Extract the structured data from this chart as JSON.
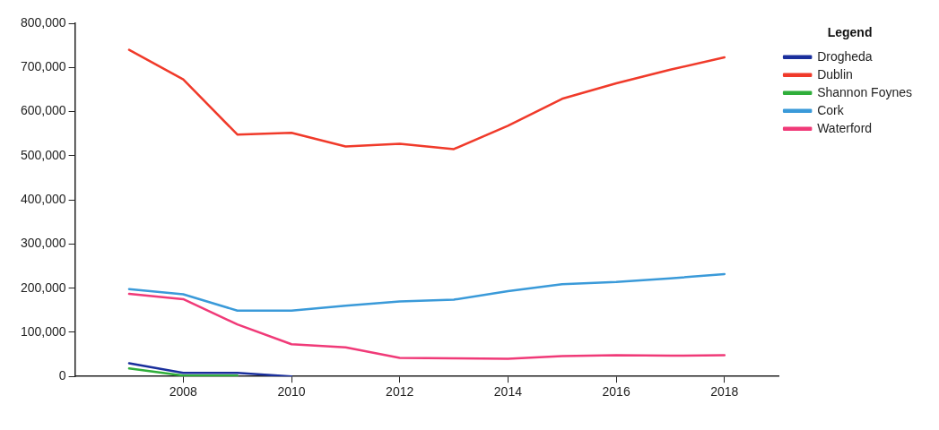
{
  "chart_data": {
    "type": "line",
    "legend_title": "Legend",
    "legend": "top right",
    "grid": false,
    "marker": "none",
    "line_style": "solid",
    "xlim": [
      2006,
      2019
    ],
    "xticks": [
      2008,
      2010,
      2012,
      2014,
      2016,
      2018
    ],
    "ylim": [
      0,
      800000
    ],
    "yticks": [
      {
        "value": 0,
        "label": "0"
      },
      {
        "value": 100000,
        "label": "100,000"
      },
      {
        "value": 200000,
        "label": "200,000"
      },
      {
        "value": 300000,
        "label": "300,000"
      },
      {
        "value": 400000,
        "label": "400,000"
      },
      {
        "value": 500000,
        "label": "500,000"
      },
      {
        "value": 600000,
        "label": "600,000"
      },
      {
        "value": 700000,
        "label": "700,000"
      },
      {
        "value": 800000,
        "label": "800,000"
      }
    ],
    "series": [
      {
        "name": "Drogheda",
        "color": "#1a2f9c",
        "x": [
          2007,
          2008,
          2009,
          2010
        ],
        "values": [
          30000,
          8000,
          8000,
          0
        ]
      },
      {
        "name": "Dublin",
        "color": "#f03a2a",
        "x": [
          2007,
          2008,
          2009,
          2010,
          2011,
          2012,
          2013,
          2014,
          2015,
          2016,
          2017,
          2018
        ],
        "values": [
          740000,
          673000,
          548000,
          552000,
          521000,
          527000,
          515000,
          568000,
          629000,
          664000,
          695000,
          723000
        ]
      },
      {
        "name": "Shannon Foynes",
        "color": "#2fae3a",
        "x": [
          2007,
          2008,
          2009
        ],
        "values": [
          18000,
          2000,
          2000
        ]
      },
      {
        "name": "Cork",
        "color": "#3a9ad9",
        "x": [
          2007,
          2008,
          2009,
          2010,
          2011,
          2012,
          2013,
          2014,
          2015,
          2016,
          2017,
          2018
        ],
        "values": [
          198000,
          186000,
          149000,
          149000,
          160000,
          170000,
          174000,
          193000,
          209000,
          214000,
          222000,
          232000
        ]
      },
      {
        "name": "Waterford",
        "color": "#f03a78",
        "x": [
          2007,
          2008,
          2009,
          2010,
          2011,
          2012,
          2013,
          2014,
          2015,
          2016,
          2017,
          2018
        ],
        "values": [
          187000,
          175000,
          118000,
          73000,
          66000,
          42000,
          41000,
          40000,
          46000,
          48000,
          47000,
          48000
        ]
      }
    ]
  }
}
